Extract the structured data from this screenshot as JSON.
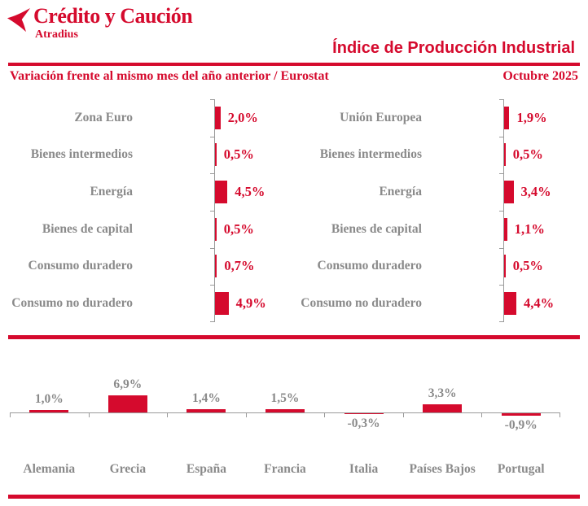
{
  "header": {
    "logo_title": "Crédito y Caución",
    "logo_subtitle": "Atradius",
    "title": "Índice de Producción Industrial",
    "subtitle": "Variación frente al mismo mes del año anterior / Eurostat",
    "period": "Octubre 2025"
  },
  "colors": {
    "accent": "#D50A2D",
    "label_gray": "#8A8A8A",
    "axis_gray": "#9A9A9A"
  },
  "chart_data": [
    {
      "type": "bar",
      "orientation": "horizontal",
      "group": "Zona Euro",
      "unit": "%",
      "categories": [
        "Zona Euro",
        "Bienes intermedios",
        "Energía",
        "Bienes de capital",
        "Consumo duradero",
        "Consumo no duradero"
      ],
      "values": [
        2.0,
        0.5,
        4.5,
        0.5,
        0.7,
        4.9
      ],
      "value_labels": [
        "2,0%",
        "0,5%",
        "4,5%",
        "0,5%",
        "0,7%",
        "4,9%"
      ],
      "legend_position": "none",
      "grid": false
    },
    {
      "type": "bar",
      "orientation": "horizontal",
      "group": "Unión Europea",
      "unit": "%",
      "categories": [
        "Unión Europea",
        "Bienes intermedios",
        "Energía",
        "Bienes de capital",
        "Consumo duradero",
        "Consumo no duradero"
      ],
      "values": [
        1.9,
        0.5,
        3.4,
        1.1,
        0.5,
        4.4
      ],
      "value_labels": [
        "1,9%",
        "0,5%",
        "3,4%",
        "1,1%",
        "0,5%",
        "4,4%"
      ],
      "legend_position": "none",
      "grid": false
    },
    {
      "type": "bar",
      "orientation": "vertical",
      "group": "Países",
      "unit": "%",
      "categories": [
        "Alemania",
        "Grecia",
        "España",
        "Francia",
        "Italia",
        "Países Bajos",
        "Portugal"
      ],
      "values": [
        1.0,
        6.9,
        1.4,
        1.5,
        -0.3,
        3.3,
        -0.9
      ],
      "value_labels": [
        "1,0%",
        "6,9%",
        "1,4%",
        "1,5%",
        "-0,3%",
        "3,3%",
        "-0,9%"
      ],
      "legend_position": "none",
      "grid": false
    }
  ]
}
